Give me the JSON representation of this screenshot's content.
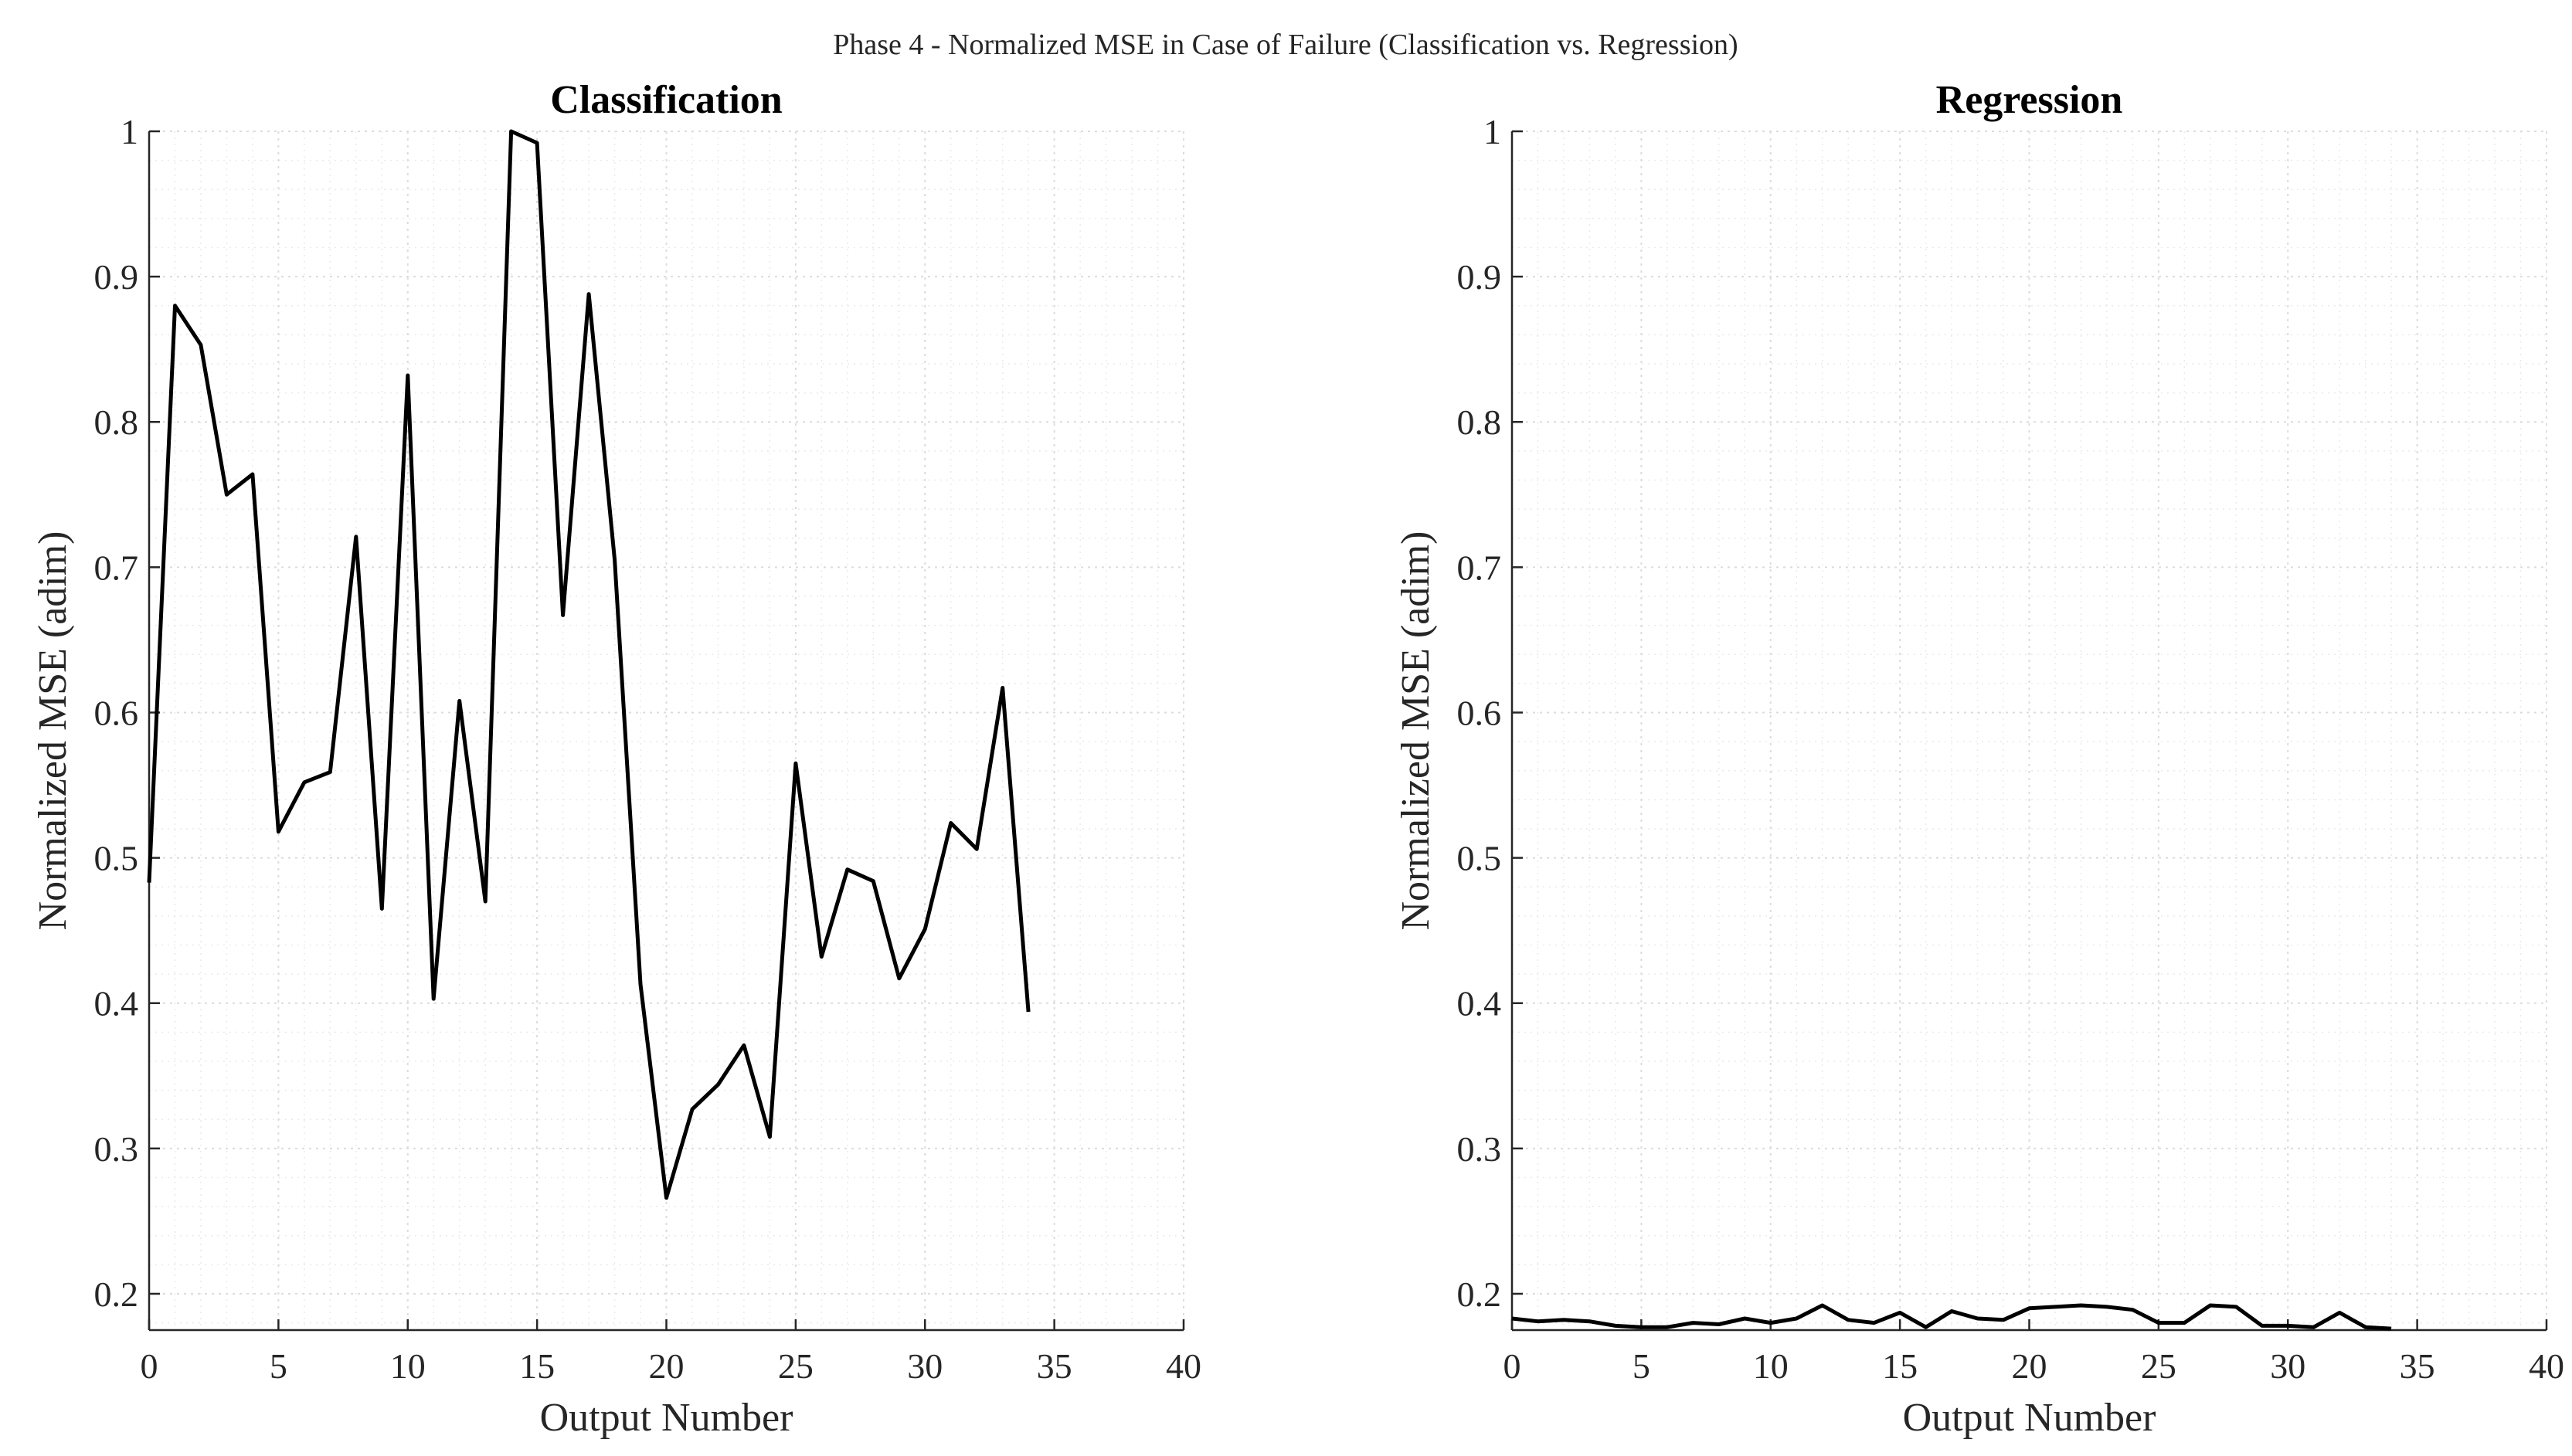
{
  "figure_title": "Phase 4 - Normalized MSE in Case of Failure (Classification vs. Regression)",
  "colors": {
    "line": "#000000",
    "grid": "#dcdcdc",
    "axis": "#262626"
  },
  "chart_data": [
    {
      "type": "line",
      "title": "Classification",
      "xlabel": "Output Number",
      "ylabel": "Normalized MSE (adim)",
      "xlim": [
        0,
        40
      ],
      "ylim": [
        0.175,
        1.0
      ],
      "xticks": [
        0,
        5,
        10,
        15,
        20,
        25,
        30,
        35,
        40
      ],
      "yticks": [
        0.2,
        0.3,
        0.4,
        0.5,
        0.6,
        0.7,
        0.8,
        0.9,
        1
      ],
      "grid": true,
      "minor_grid": true,
      "series": [
        {
          "x": [
            0,
            1,
            2,
            3,
            4,
            5,
            6,
            7,
            8,
            9,
            10,
            11,
            12,
            13,
            14,
            15,
            16,
            17,
            18,
            19,
            20,
            21,
            22,
            23,
            24,
            25,
            26,
            27,
            28,
            29,
            30,
            31,
            32,
            33,
            34
          ],
          "values": [
            0.483,
            0.88,
            0.853,
            0.75,
            0.764,
            0.518,
            0.552,
            0.559,
            0.721,
            0.465,
            0.832,
            0.403,
            0.608,
            0.47,
            1.0,
            0.992,
            0.667,
            0.888,
            0.705,
            0.413,
            0.266,
            0.327,
            0.344,
            0.371,
            0.308,
            0.565,
            0.432,
            0.492,
            0.484,
            0.417,
            0.451,
            0.524,
            0.506,
            0.617,
            0.394
          ]
        }
      ]
    },
    {
      "type": "line",
      "title": "Regression",
      "xlabel": "Output Number",
      "ylabel": "Normalized MSE (adim)",
      "xlim": [
        0,
        40
      ],
      "ylim": [
        0.175,
        1.0
      ],
      "xticks": [
        0,
        5,
        10,
        15,
        20,
        25,
        30,
        35,
        40
      ],
      "yticks": [
        0.2,
        0.3,
        0.4,
        0.5,
        0.6,
        0.7,
        0.8,
        0.9,
        1
      ],
      "grid": true,
      "minor_grid": true,
      "series": [
        {
          "x": [
            0,
            1,
            2,
            3,
            4,
            5,
            6,
            7,
            8,
            9,
            10,
            11,
            12,
            13,
            14,
            15,
            16,
            17,
            18,
            19,
            20,
            21,
            22,
            23,
            24,
            25,
            26,
            27,
            28,
            29,
            30,
            31,
            32,
            33,
            34
          ],
          "values": [
            0.183,
            0.181,
            0.182,
            0.181,
            0.178,
            0.177,
            0.177,
            0.18,
            0.179,
            0.183,
            0.18,
            0.183,
            0.192,
            0.182,
            0.18,
            0.187,
            0.177,
            0.188,
            0.183,
            0.182,
            0.19,
            0.191,
            0.192,
            0.191,
            0.189,
            0.18,
            0.18,
            0.192,
            0.191,
            0.178,
            0.178,
            0.177,
            0.187,
            0.177,
            0.176
          ]
        }
      ]
    }
  ]
}
